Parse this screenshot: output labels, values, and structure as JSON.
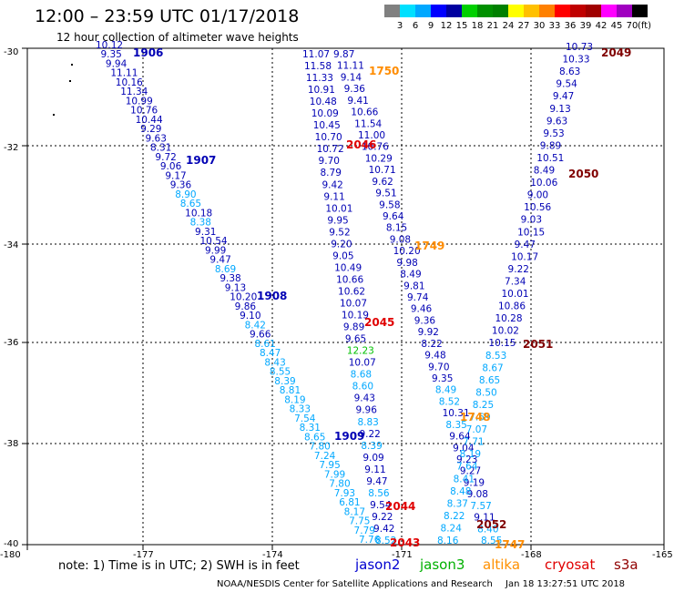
{
  "title": "12:00 – 23:59 UTC 01/17/2018",
  "subtitle": "12 hour collection of altimeter wave heights",
  "legend": {
    "unit": "(ft)",
    "colors": [
      "#808080",
      "#00e0ff",
      "#00a8ff",
      "#0000ff",
      "#0000a0",
      "#00d000",
      "#009000",
      "#008000",
      "#ffff00",
      "#ffc000",
      "#ff8000",
      "#ff0000",
      "#c00000",
      "#a00000",
      "#ff00ff",
      "#a000c0",
      "#000000"
    ],
    "labels": [
      "3",
      "6",
      "9",
      "12",
      "15",
      "18",
      "21",
      "24",
      "27",
      "30",
      "33",
      "36",
      "39",
      "42",
      "45",
      "70"
    ]
  },
  "colors": {
    "dark_blue": "#0000b4",
    "mid_blue": "#00a8ff",
    "light_blue": "#00c0ff",
    "green": "#00c000",
    "orange": "#ff8c00",
    "red": "#e00000",
    "dark_red": "#800000"
  },
  "map": {
    "lon_ticks": [
      "-180",
      "-177",
      "-174",
      "-171",
      "-168",
      "-165"
    ],
    "lat_ticks": [
      "-30",
      "-32",
      "-34",
      "-36",
      "-38",
      "-40"
    ]
  },
  "tracks": [
    {
      "x0": 105,
      "x1": 394,
      "y0": 53,
      "y1": 596,
      "color": "dark_blue",
      "switch": 0.23,
      "color2": "mid_blue",
      "values": [
        "10.12",
        "9.35",
        "9.94",
        "11.11",
        "10.16",
        "11.34",
        "10.99",
        "10.76",
        "10.44",
        "9.29",
        "9.63",
        "8.31",
        "9.72",
        "9.06",
        "9.17",
        "9.36",
        "8.90",
        "8.65",
        "10.18",
        "8.38",
        "9.31",
        "10.54",
        "9.99",
        "9.47",
        "8.69",
        "9.38",
        "9.13",
        "10.20",
        "9.86",
        "9.10",
        "8.42",
        "9.66",
        "8.61",
        "8.47",
        "8.43",
        "8.55",
        "8.39",
        "8.81",
        "8.19",
        "8.33",
        "7.54",
        "8.31",
        "8.65",
        "7.80",
        "7.24",
        "7.95",
        "7.99",
        "7.80",
        "7.93",
        "6.81",
        "8.17",
        "7.75",
        "7.79",
        "7.76"
      ]
    },
    {
      "x0": 332,
      "x1": 412,
      "y0": 63,
      "y1": 597,
      "color": "dark_blue",
      "switch": 0.25,
      "color2": "mid_blue",
      "values": [
        "11.07",
        "11.58",
        "11.33",
        "10.91",
        "10.48",
        "10.09",
        "10.45",
        "10.70",
        "10.72",
        "9.70",
        "8.79",
        "9.42",
        "9.11",
        "10.01",
        "9.95",
        "9.52",
        "9.20",
        "9.05",
        "10.49",
        "10.66",
        "10.62",
        "10.07",
        "10.19",
        "9.89",
        "9.65",
        "12.23",
        "10.07",
        "8.68",
        "8.60",
        "9.43",
        "9.96",
        "8.83",
        "9.22",
        "8.39",
        "9.09",
        "9.11",
        "9.47",
        "8.56",
        "9.54",
        "9.22",
        "9.42",
        "8.52"
      ]
    },
    {
      "x0": 366,
      "x1": 528,
      "y0": 63,
      "y1": 597,
      "color": "dark_blue",
      "switch": 0.62,
      "color2": "mid_blue",
      "values": [
        "9.87",
        "11.11",
        "9.14",
        "9.36",
        "9.41",
        "10.66",
        "11.54",
        "11.00",
        "10.76",
        "10.29",
        "10.71",
        "9.62",
        "9.51",
        "9.58",
        "9.64",
        "8.15",
        "9.08",
        "10.20",
        "9.98",
        "8.49",
        "9.81",
        "9.74",
        "9.46",
        "9.36",
        "9.92",
        "8.22",
        "9.48",
        "9.70",
        "9.35",
        "8.49",
        "8.52",
        "10.31",
        "8.35",
        "9.64",
        "9.04",
        "9.23",
        "9.27",
        "9.19",
        "9.08",
        "7.57",
        "9.11",
        "8.40",
        "8.55"
      ]
    },
    {
      "x0": 621,
      "x1": 480,
      "y0": 55,
      "y1": 597,
      "color": "dark_blue",
      "switch": 0.58,
      "color2": "mid_blue",
      "values": [
        "10.73",
        "10.33",
        "8.63",
        "9.54",
        "9.47",
        "9.13",
        "9.63",
        "9.53",
        "9.89",
        "10.51",
        "8.49",
        "10.06",
        "9.00",
        "10.56",
        "9.03",
        "10.15",
        "9.47",
        "10.17",
        "9.22",
        "7.34",
        "10.01",
        "10.86",
        "10.28",
        "10.02",
        "10.15",
        "8.53",
        "8.67",
        "8.65",
        "8.50",
        "8.25",
        "7.69",
        "7.07",
        "7.71",
        "8.19",
        "7.64",
        "8.41",
        "8.48",
        "8.37",
        "8.22",
        "8.24",
        "8.16"
      ]
    }
  ],
  "passes": [
    {
      "label": "1906",
      "color": "dark_blue"
    },
    {
      "label": "1907",
      "color": "dark_blue"
    },
    {
      "label": "1908",
      "color": "dark_blue"
    },
    {
      "label": "1909",
      "color": "dark_blue"
    },
    {
      "label": "1750",
      "color": "orange"
    },
    {
      "label": "1749",
      "color": "orange"
    },
    {
      "label": "1748",
      "color": "orange"
    },
    {
      "label": "1747",
      "color": "orange"
    },
    {
      "label": "2046",
      "color": "red"
    },
    {
      "label": "2045",
      "color": "red"
    },
    {
      "label": "2044",
      "color": "red"
    },
    {
      "label": "2043",
      "color": "red"
    },
    {
      "label": "2049",
      "color": "dark_red"
    },
    {
      "label": "2050",
      "color": "dark_red"
    },
    {
      "label": "2051",
      "color": "dark_red"
    },
    {
      "label": "2052",
      "color": "dark_red"
    }
  ],
  "note": "note:  1) Time is in UTC;  2) SWH is in feet",
  "satellites": [
    {
      "name": "jason2",
      "color": "#0000d0"
    },
    {
      "name": "jason3",
      "color": "#00b000"
    },
    {
      "name": "altika",
      "color": "#ff9000"
    },
    {
      "name": "cryosat",
      "color": "#e00000"
    },
    {
      "name": "s3a",
      "color": "#900000"
    }
  ],
  "footer": {
    "center": "NOAA/NESDIS Center for Satellite Applications and Research",
    "timestamp": "Jan 18 13:27:51 UTC 2018"
  }
}
